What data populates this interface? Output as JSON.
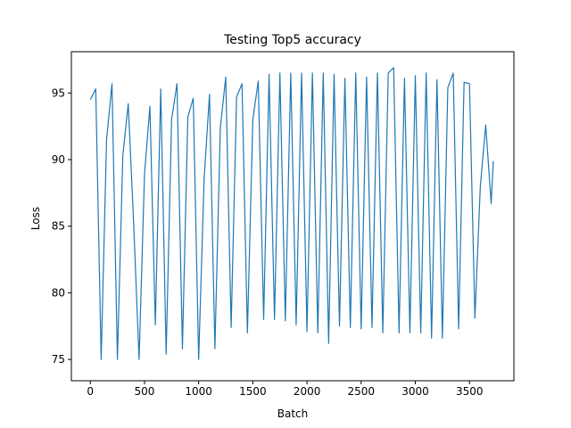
{
  "chart_data": {
    "type": "line",
    "title": "Testing Top5 accuracy",
    "xlabel": "Batch",
    "ylabel": "Loss",
    "xlim": [
      -175,
      3910
    ],
    "ylim": [
      73.4,
      98.1
    ],
    "x_ticks": [
      0,
      500,
      1000,
      1500,
      2000,
      2500,
      3000,
      3500
    ],
    "y_ticks": [
      75,
      80,
      85,
      90,
      95
    ],
    "grid": false,
    "legend": null,
    "series": [
      {
        "color": "#1f77b4",
        "x": [
          0,
          50,
          100,
          150,
          200,
          250,
          300,
          350,
          400,
          450,
          500,
          550,
          600,
          650,
          700,
          750,
          800,
          850,
          900,
          950,
          1000,
          1050,
          1100,
          1150,
          1200,
          1250,
          1300,
          1350,
          1400,
          1450,
          1500,
          1550,
          1600,
          1650,
          1700,
          1750,
          1800,
          1850,
          1900,
          1950,
          2000,
          2050,
          2100,
          2150,
          2200,
          2250,
          2300,
          2350,
          2400,
          2450,
          2500,
          2550,
          2600,
          2650,
          2700,
          2750,
          2800,
          2850,
          2900,
          2950,
          3000,
          3050,
          3100,
          3150,
          3200,
          3250,
          3300,
          3350,
          3400,
          3450,
          3500,
          3550,
          3600,
          3650,
          3700,
          3720
        ],
        "y": [
          94.5,
          95.3,
          75.0,
          91.5,
          95.7,
          75.0,
          90.3,
          94.2,
          85.2,
          75.0,
          88.9,
          94.0,
          77.6,
          95.3,
          75.4,
          93.0,
          95.7,
          75.8,
          93.2,
          94.6,
          75.0,
          88.5,
          94.9,
          75.8,
          92.4,
          96.2,
          77.4,
          94.7,
          95.7,
          77.0,
          93.0,
          95.9,
          78.0,
          96.4,
          78.0,
          96.5,
          77.9,
          96.5,
          77.6,
          96.5,
          77.1,
          96.5,
          77.0,
          96.5,
          76.2,
          96.4,
          77.5,
          96.1,
          77.4,
          96.5,
          77.3,
          96.2,
          77.4,
          96.5,
          77.0,
          96.5,
          96.9,
          77.0,
          96.1,
          77.0,
          96.3,
          77.0,
          96.5,
          76.6,
          96.0,
          76.6,
          95.4,
          96.5,
          77.3,
          95.8,
          95.7,
          78.1,
          88.0,
          92.6,
          86.7,
          89.9
        ]
      }
    ]
  }
}
